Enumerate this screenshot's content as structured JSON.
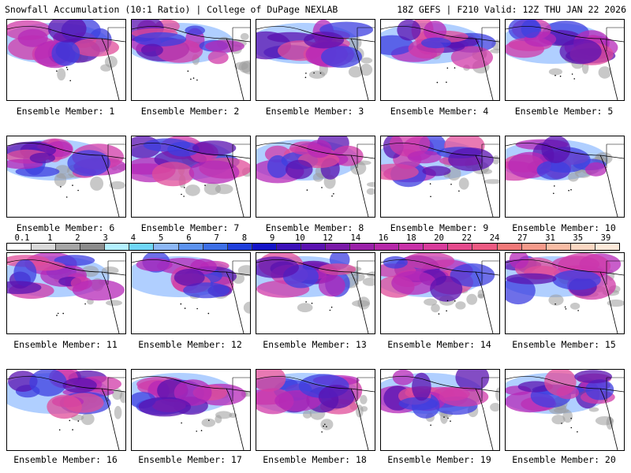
{
  "header": {
    "left_title": "Snowfall Accumulation (10:1 Ratio) | College of DuPage NEXLAB",
    "right_title": "18Z GEFS | F210 Valid: 12Z THU JAN 22 2026"
  },
  "members": [
    {
      "label": "Ensemble Member: 1"
    },
    {
      "label": "Ensemble Member: 2"
    },
    {
      "label": "Ensemble Member: 3"
    },
    {
      "label": "Ensemble Member: 4"
    },
    {
      "label": "Ensemble Member: 5"
    },
    {
      "label": "Ensemble Member: 6"
    },
    {
      "label": "Ensemble Member: 7"
    },
    {
      "label": "Ensemble Member: 8"
    },
    {
      "label": "Ensemble Member: 9"
    },
    {
      "label": "Ensemble Member: 10"
    },
    {
      "label": "Ensemble Member: 11"
    },
    {
      "label": "Ensemble Member: 12"
    },
    {
      "label": "Ensemble Member: 13"
    },
    {
      "label": "Ensemble Member: 14"
    },
    {
      "label": "Ensemble Member: 15"
    },
    {
      "label": "Ensemble Member: 16"
    },
    {
      "label": "Ensemble Member: 17"
    },
    {
      "label": "Ensemble Member: 18"
    },
    {
      "label": "Ensemble Member: 19"
    },
    {
      "label": "Ensemble Member: 20"
    }
  ],
  "colorbar": {
    "labels": [
      "0.1",
      "1",
      "2",
      "3",
      "4",
      "5",
      "6",
      "7",
      "8",
      "9",
      "10",
      "12",
      "14",
      "16",
      "18",
      "20",
      "22",
      "24",
      "27",
      "31",
      "35",
      "39"
    ],
    "colors": [
      "#ffffff",
      "#d9d9d9",
      "#a6a6a6",
      "#8c8c8c",
      "#b3f0ff",
      "#6fd6f7",
      "#8cb7f5",
      "#5c93ef",
      "#3d6fe6",
      "#1f3fdb",
      "#1414c8",
      "#3b10b8",
      "#5a12b0",
      "#7a1aa8",
      "#9a20a8",
      "#b528a8",
      "#c832a8",
      "#d83c9c",
      "#e44a8c",
      "#ec5a82",
      "#f07878",
      "#f49a8a",
      "#f8bca4",
      "#fbd7c2",
      "#fde9d9"
    ]
  }
}
